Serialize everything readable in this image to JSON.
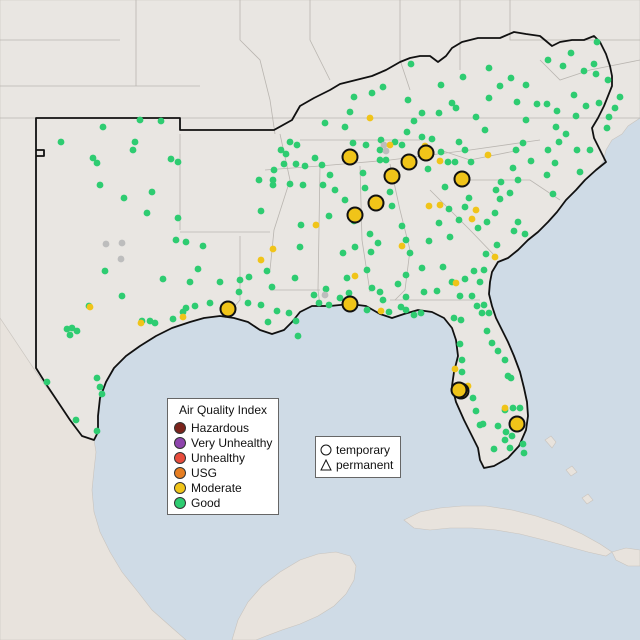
{
  "map": {
    "colors": {
      "water": "#cfdbe6",
      "land": "#e9e6e2",
      "land_outside": "#ece8e3",
      "borders": "#b9b5b0",
      "region_outline": "#111111",
      "good": "#2ecc71",
      "moderate": "#f0c419",
      "usg": "#e67e22",
      "unhealthy": "#e74c3c",
      "very_unhealthy": "#8e44ad",
      "hazardous": "#7b241c",
      "no_data": "#bdbdbd"
    },
    "region": "southeastern-united-states",
    "monitor_counts": {
      "good_small": 290,
      "moderate_small": 24,
      "moderate_large_temporary": 12,
      "no_data": 6
    }
  },
  "aqi_legend": {
    "title": "Air Quality Index",
    "items": [
      {
        "label": "Hazardous",
        "color": "#7b241c"
      },
      {
        "label": "Very Unhealthy",
        "color": "#8e44ad"
      },
      {
        "label": "Unhealthy",
        "color": "#e74c3c"
      },
      {
        "label": "USG",
        "color": "#e67e22"
      },
      {
        "label": "Moderate",
        "color": "#f0c419"
      },
      {
        "label": "Good",
        "color": "#2ecc71"
      }
    ]
  },
  "shape_legend": {
    "items": [
      {
        "label": "temporary",
        "icon": "circle-icon"
      },
      {
        "label": "permanent",
        "icon": "triangle-icon"
      }
    ]
  }
}
